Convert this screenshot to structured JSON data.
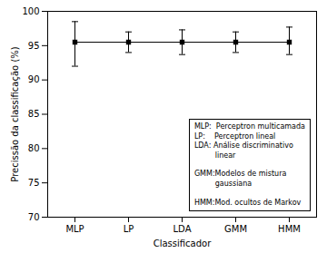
{
  "chart_data": {
    "type": "line",
    "categories": [
      "MLP",
      "LP",
      "LDA",
      "GMM",
      "HMM"
    ],
    "values": [
      95.5,
      95.5,
      95.5,
      95.5,
      95.5
    ],
    "yerr_lower": [
      3.5,
      1.5,
      1.8,
      1.5,
      1.8
    ],
    "yerr_upper": [
      3.0,
      1.5,
      1.8,
      1.5,
      2.2
    ],
    "ylim": [
      70,
      100
    ],
    "yticks": [
      70,
      75,
      80,
      85,
      90,
      95,
      100
    ],
    "ylabel": "Precissão da classificação (%)",
    "xlabel": "Classificador",
    "color": "#000000",
    "marker": "square",
    "annotation": "MLP:  Perceptron multicamada\nLP:    Perceptron lineal\nLDA: Análise discriminativo\n         linear\n\nGMM:Modelos de mistura\n         gaussiana\n\nHMM:Mod. ocultos de Markov"
  }
}
